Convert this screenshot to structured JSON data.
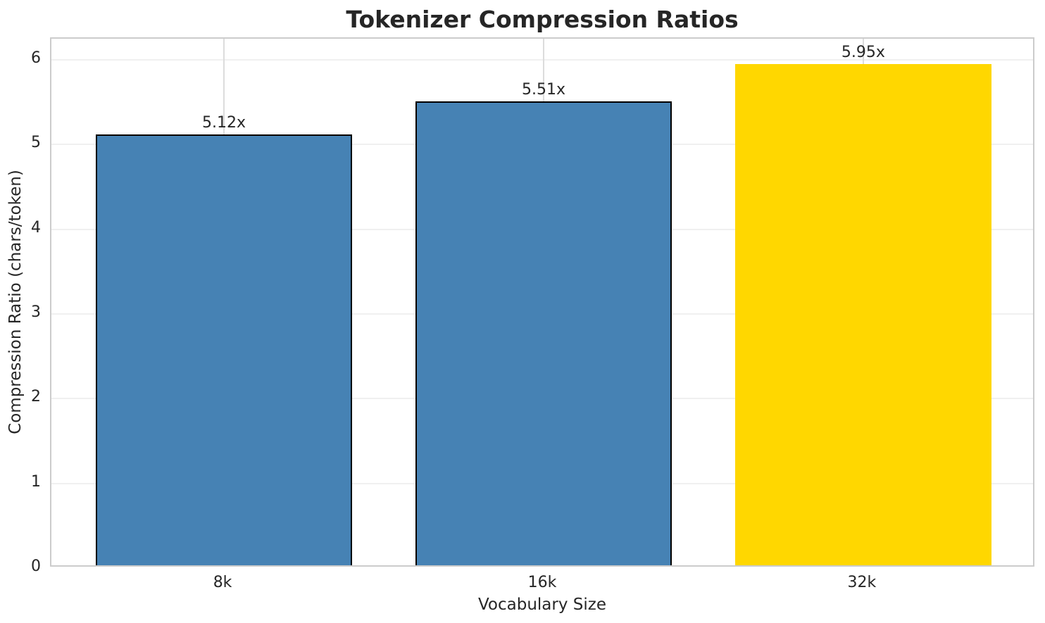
{
  "chart_data": {
    "type": "bar",
    "title": "Tokenizer Compression Ratios",
    "xlabel": "Vocabulary Size",
    "ylabel": "Compression Ratio (chars/token)",
    "categories": [
      "8k",
      "16k",
      "32k"
    ],
    "values": [
      5.12,
      5.51,
      5.95
    ],
    "bar_labels": [
      "5.12x",
      "5.51x",
      "5.95x"
    ],
    "bar_colors": [
      "#4682b4",
      "#4682b4",
      "#ffd700"
    ],
    "bar_edge_colors": [
      "#000000",
      "#000000",
      "none"
    ],
    "y_ticks": [
      0,
      1,
      2,
      3,
      4,
      5,
      6
    ],
    "ylim": [
      0,
      6.25
    ],
    "grid": true,
    "legend_position": "none"
  },
  "colors": {
    "background": "#ffffff",
    "text": "#262626",
    "grid_horizontal": "#f0f0f0",
    "grid_vertical": "#dcdcdc",
    "spine": "#cccccc",
    "bar_blue": "#4682b4",
    "bar_gold": "#ffd700",
    "bar_edge": "#000000"
  }
}
